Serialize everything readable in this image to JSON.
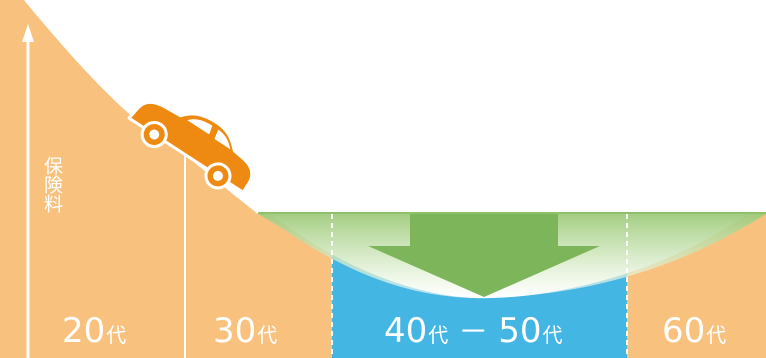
{
  "y_axis_label": "保険料",
  "segments": [
    {
      "num": "20",
      "suffix": "代"
    },
    {
      "num": "30",
      "suffix": "代"
    },
    {
      "num_start": "40",
      "suffix_start": "代",
      "separator": "－",
      "num_end": "50",
      "suffix_end": "代"
    },
    {
      "num": "60",
      "suffix": "代"
    }
  ],
  "colors": {
    "orange_area": "#F8C27E",
    "blue_area": "#43B6E3",
    "green_arrow": "#7DB65A",
    "green_band": "#B9D99C",
    "car_orange": "#EE8A12",
    "white": "#FFFFFF"
  },
  "icons": {
    "car": "car-icon",
    "arrow": "down-arrow-icon",
    "axis_arrow": "axis-arrow-icon"
  }
}
